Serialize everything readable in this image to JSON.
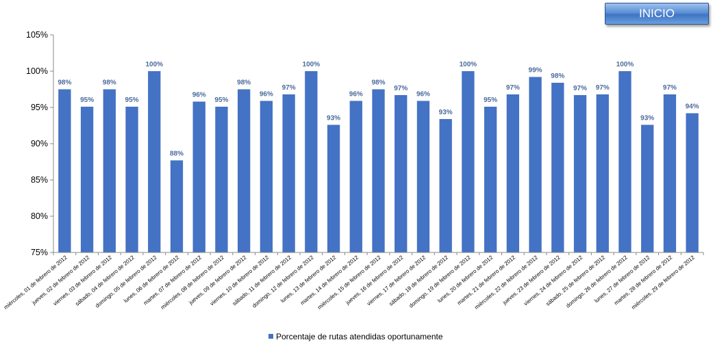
{
  "button": {
    "label": "INICIO"
  },
  "chart_data": {
    "type": "bar",
    "title": "",
    "xlabel": "",
    "ylabel": "",
    "ylim": [
      0.75,
      1.05
    ],
    "yticks": [
      "75%",
      "80%",
      "85%",
      "90%",
      "95%",
      "100%",
      "105%"
    ],
    "grid": false,
    "legend_position": "bottom",
    "bar_color": "#4472c4",
    "label_color": "#4a6a9c",
    "categories": [
      "miércoles, 01 de febrero de 2012",
      "jueves, 02 de febrero de 2012",
      "viernes, 03 de febrero de 2012",
      "sábado, 04 de febrero de 2012",
      "domingo, 05 de febrero de 2012",
      "lunes, 06 de febrero de 2012",
      "martes, 07 de febrero de 2012",
      "miércoles, 08 de febrero de 2012",
      "jueves, 09 de febrero de 2012",
      "viernes, 10 de febrero de 2012",
      "sábado, 11 de febrero de 2012",
      "domingo, 12 de febrero de 2012",
      "lunes, 13 de febrero de 2012",
      "martes, 14 de febrero de 2012",
      "miércoles, 15 de febrero de 2012",
      "jueves, 16 de febrero de 2012",
      "viernes, 17 de febrero de 2012",
      "sábado, 18 de febrero de 2012",
      "domingo, 19 de febrero de 2012",
      "lunes, 20 de febrero de 2012",
      "martes, 21 de febrero de 2012",
      "miércoles, 22 de febrero de 2012",
      "jueves, 23 de febrero de 2012",
      "viernes, 24 de febrero de 2012",
      "sábado, 25 de febrero de 2012",
      "domingo, 26 de febrero de 2012",
      "lunes, 27 de febrero de 2012",
      "martes, 28 de febrero de 2012",
      "miércoles, 29 de febrero de 2012"
    ],
    "series": [
      {
        "name": "Porcentaje de rutas atendidas oportunamente",
        "values": [
          0.975,
          0.951,
          0.975,
          0.951,
          1.0,
          0.877,
          0.958,
          0.951,
          0.975,
          0.959,
          0.968,
          1.0,
          0.926,
          0.959,
          0.975,
          0.967,
          0.959,
          0.934,
          1.0,
          0.951,
          0.968,
          0.992,
          0.984,
          0.967,
          0.968,
          1.0,
          0.926,
          0.968,
          0.942
        ],
        "labels": [
          "98%",
          "95%",
          "98%",
          "95%",
          "100%",
          "88%",
          "96%",
          "95%",
          "98%",
          "96%",
          "97%",
          "100%",
          "93%",
          "96%",
          "98%",
          "97%",
          "96%",
          "93%",
          "100%",
          "95%",
          "97%",
          "99%",
          "98%",
          "97%",
          "97%",
          "100%",
          "93%",
          "97%",
          "94%"
        ]
      }
    ]
  }
}
